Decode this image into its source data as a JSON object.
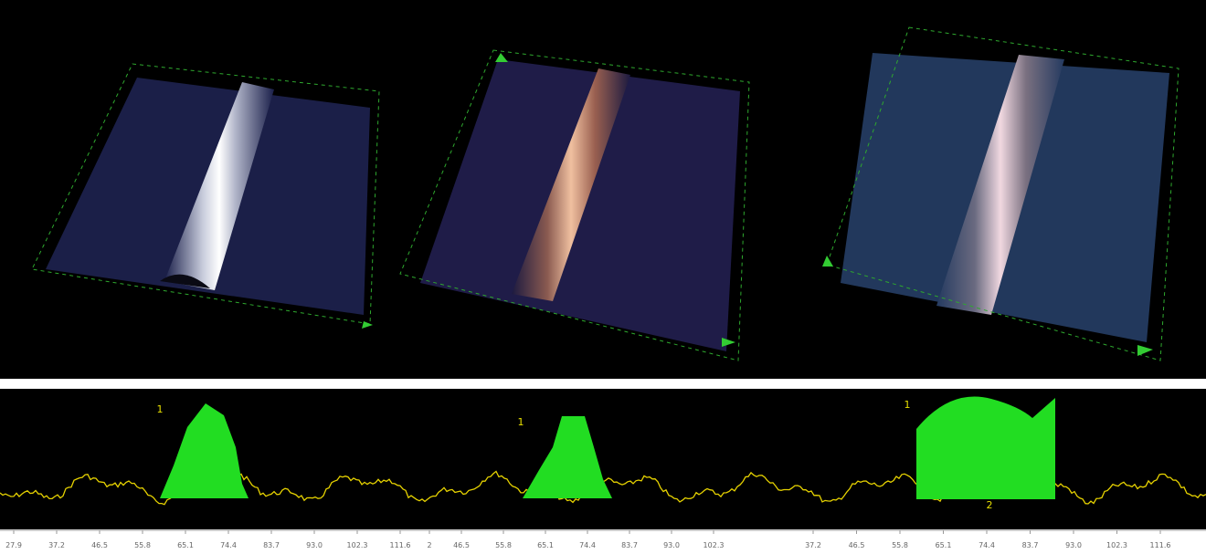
{
  "profiles": [
    {
      "label": "1",
      "ticks": [
        "27.9",
        "37.2",
        "46.5",
        "55.8",
        "65.1",
        "74.4",
        "83.7",
        "93.0",
        "102.3",
        "111.6"
      ]
    },
    {
      "label": "1",
      "ticks": [
        "2",
        "46.5",
        "55.8",
        "65.1",
        "74.4",
        "83.7",
        "93.0",
        "102.3"
      ]
    },
    {
      "label": "1",
      "label2": "2",
      "ticks": [
        "37.2",
        "46.5",
        "55.8",
        "65.1",
        "74.4",
        "83.7",
        "93.0",
        "102.3",
        "111.6"
      ]
    }
  ]
}
